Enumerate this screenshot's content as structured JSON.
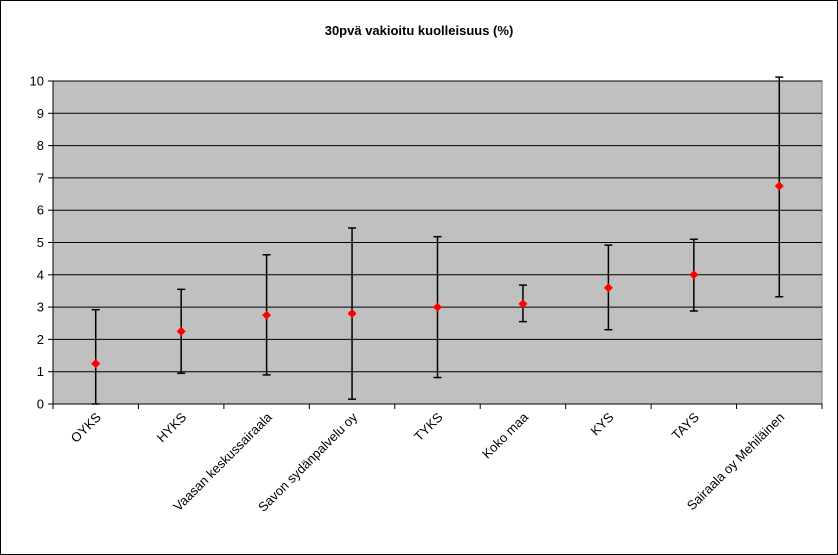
{
  "chart_data": {
    "type": "scatter",
    "title": "30pvä vakioitu kuolleisuus (%)",
    "xlabel": "",
    "ylabel": "",
    "ylim": [
      0,
      10
    ],
    "yticks": [
      0,
      1,
      2,
      3,
      4,
      5,
      6,
      7,
      8,
      9,
      10
    ],
    "grid": true,
    "legend": "none",
    "categories": [
      "OYKS",
      "HYKS",
      "Vaasan keskussairaala",
      "Savon sydänpalvelu oy",
      "TYKS",
      "Koko maa",
      "KYS",
      "TAYS",
      "Sairaala oy Mehiläinen"
    ],
    "values": [
      1.25,
      2.25,
      2.75,
      2.8,
      3.0,
      3.1,
      3.6,
      4.0,
      6.75
    ],
    "lower": [
      0.0,
      0.95,
      0.9,
      0.15,
      0.82,
      2.55,
      2.3,
      2.88,
      3.32
    ],
    "upper": [
      2.92,
      3.55,
      4.62,
      5.45,
      5.18,
      3.68,
      4.92,
      5.1,
      10.12
    ],
    "colors": {
      "plot_bg": "#c0c0c0",
      "marker": "#ff0000",
      "error_bar": "#000000",
      "grid": "#000000"
    }
  }
}
